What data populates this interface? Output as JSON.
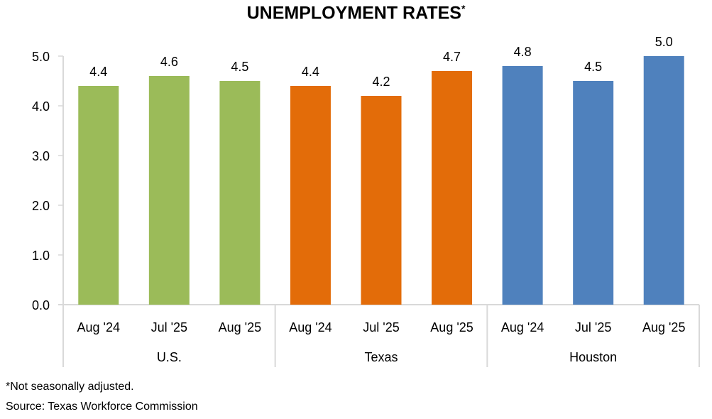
{
  "chart_data": {
    "type": "bar",
    "title": "UNEMPLOYMENT RATES",
    "title_marker": "*",
    "xlabel": "",
    "ylabel": "",
    "ylim": [
      0,
      5
    ],
    "yticks": [
      "0.0",
      "1.0",
      "2.0",
      "3.0",
      "4.0",
      "5.0"
    ],
    "grid": false,
    "groups": [
      {
        "name": "U.S.",
        "color": "#9BBB59",
        "categories": [
          "Aug '24",
          "Jul '25",
          "Aug '25"
        ],
        "values": [
          4.4,
          4.6,
          4.5
        ],
        "labels": [
          "4.4",
          "4.6",
          "4.5"
        ]
      },
      {
        "name": "Texas",
        "color": "#E36C09",
        "categories": [
          "Aug '24",
          "Jul '25",
          "Aug '25"
        ],
        "values": [
          4.4,
          4.2,
          4.7
        ],
        "labels": [
          "4.4",
          "4.2",
          "4.7"
        ]
      },
      {
        "name": "Houston",
        "color": "#4F81BD",
        "categories": [
          "Aug '24",
          "Jul '25",
          "Aug '25"
        ],
        "values": [
          4.8,
          4.5,
          5.0
        ],
        "labels": [
          "4.8",
          "4.5",
          "5.0"
        ]
      }
    ]
  },
  "footnotes": {
    "note": "*Not seasonally adjusted.",
    "source": "Source: Texas Workforce Commission"
  }
}
